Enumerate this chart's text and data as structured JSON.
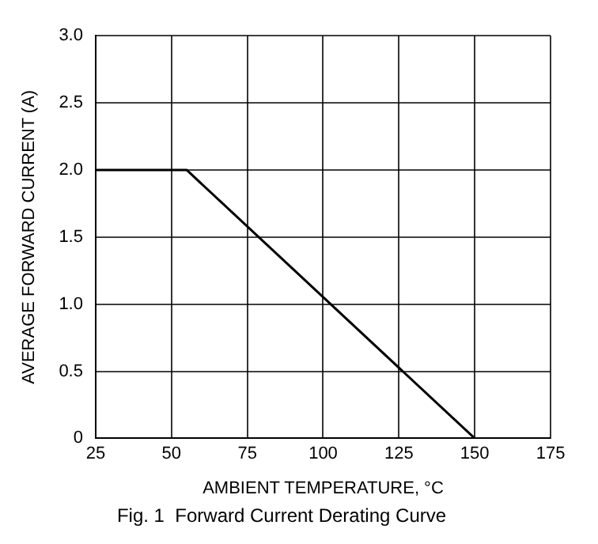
{
  "chart_data": {
    "type": "line",
    "xlabel": "AMBIENT TEMPERATURE, °C",
    "ylabel": "AVERAGE FORWARD CURRENT (A)",
    "annotations": [
      "Fig. 1  Forward Current Derating Curve"
    ],
    "x": [
      25,
      55,
      150
    ],
    "series": [
      {
        "color": "#000000",
        "values": [
          2.0,
          2.0,
          0
        ]
      }
    ],
    "xlim": [
      25,
      175
    ],
    "xticks": [
      25,
      50,
      75,
      100,
      125,
      150,
      175
    ],
    "ylim": [
      0,
      3
    ],
    "yticks": [
      0,
      0.5,
      {
        "value": 1,
        "label": "1.0"
      },
      1.5,
      {
        "value": 2,
        "label": "2.0"
      },
      2.5,
      {
        "value": 3,
        "label": "3.0"
      }
    ],
    "grid": true,
    "marker": "none",
    "line_style": "solid",
    "legend": false
  }
}
